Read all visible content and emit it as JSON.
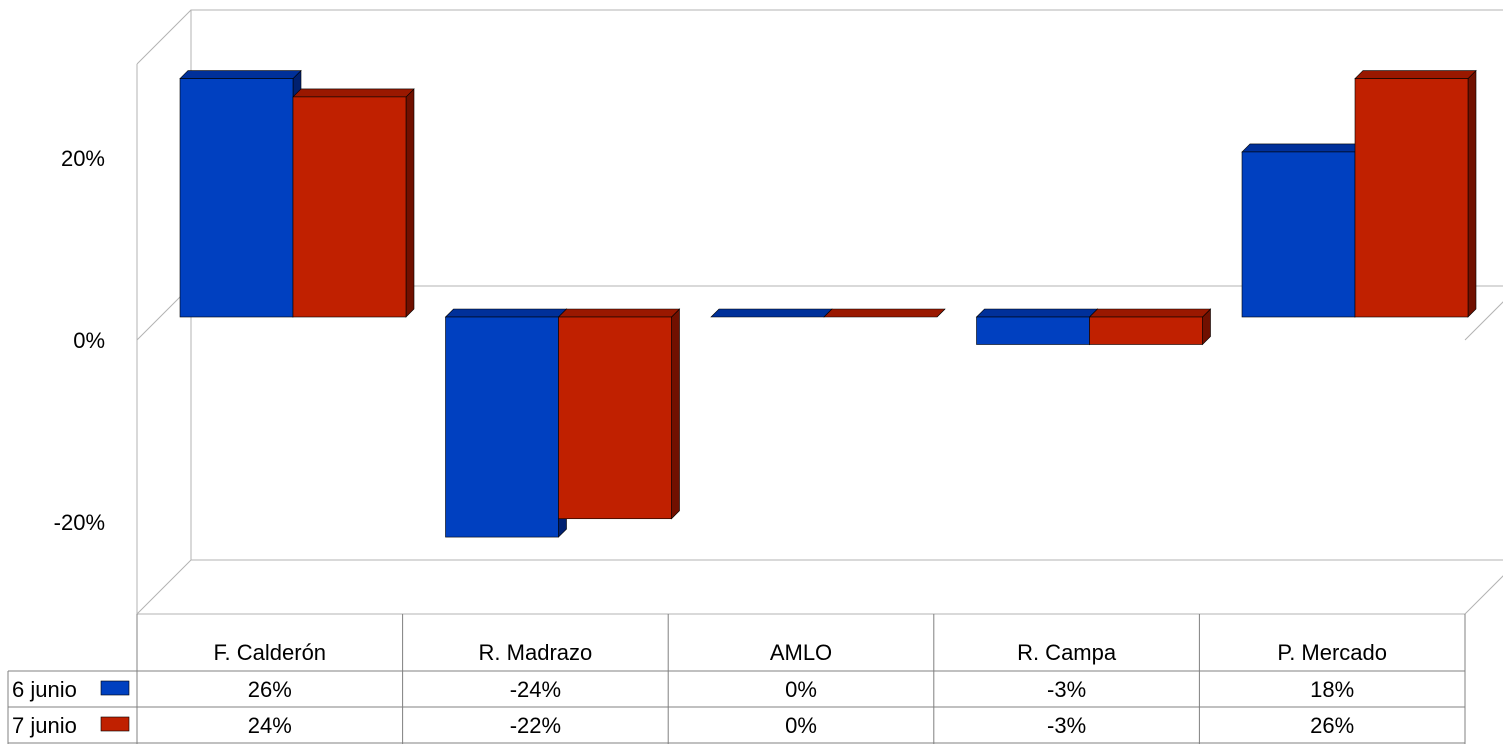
{
  "chart_data": {
    "type": "bar",
    "three_d": true,
    "categories": [
      "F. Calderón",
      "R. Madrazo",
      "AMLO",
      "R. Campa",
      "P. Mercado"
    ],
    "series": [
      {
        "name": "6 junio",
        "values": [
          26,
          -24,
          0,
          -3,
          18
        ],
        "labels": [
          "26%",
          "-24%",
          "0%",
          "-3%",
          "18%"
        ],
        "color": "#0040c0",
        "top_color": "#00309a",
        "side_color": "#002070"
      },
      {
        "name": "7 junio",
        "values": [
          24,
          -22,
          0,
          -3,
          26
        ],
        "labels": [
          "24%",
          "-22%",
          "0%",
          "-3%",
          "26%"
        ],
        "color": "#c02000",
        "top_color": "#9a1800",
        "side_color": "#701000"
      }
    ],
    "ylim": [
      -30,
      30
    ],
    "yticks": [
      {
        "value": 20,
        "label": "20%"
      },
      {
        "value": 0,
        "label": "0%"
      },
      {
        "value": -20,
        "label": "-20%"
      }
    ],
    "title": "",
    "xlabel": "",
    "ylabel": "",
    "legend": "data-table",
    "grid": "horizontal at 0%"
  }
}
